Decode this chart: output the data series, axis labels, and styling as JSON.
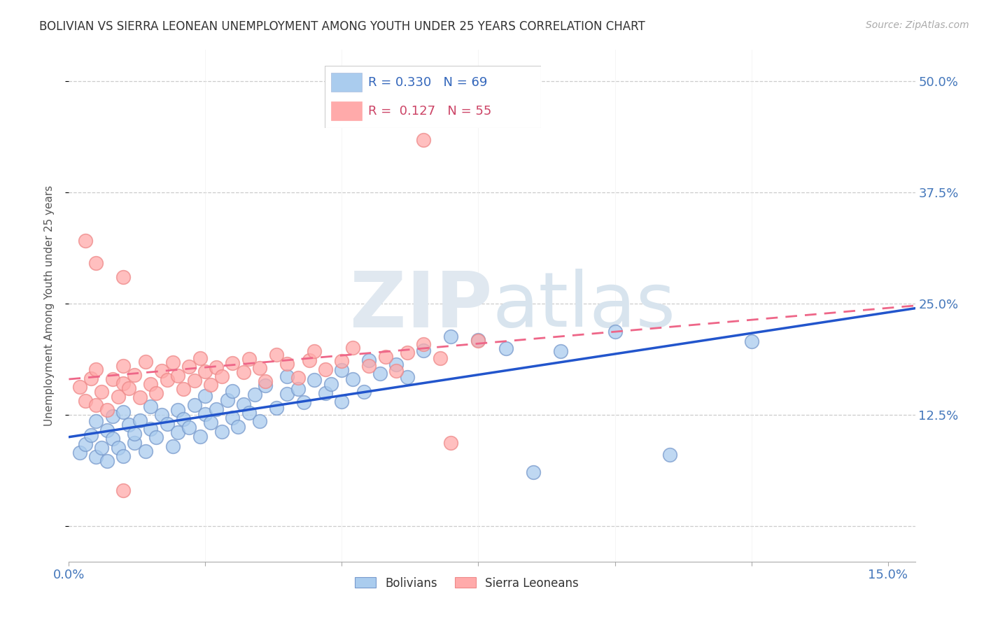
{
  "title": "BOLIVIAN VS SIERRA LEONEAN UNEMPLOYMENT AMONG YOUTH UNDER 25 YEARS CORRELATION CHART",
  "source": "Source: ZipAtlas.com",
  "ylabel": "Unemployment Among Youth under 25 years",
  "xlim": [
    0.0,
    0.155
  ],
  "ylim": [
    -0.04,
    0.535
  ],
  "blue_color": "#AACCEE",
  "pink_color": "#FFAAAA",
  "line_blue": "#2255CC",
  "line_pink": "#EE6688",
  "r_bolivia": 0.33,
  "n_bolivia": 69,
  "r_sierra": 0.127,
  "n_sierra": 55
}
